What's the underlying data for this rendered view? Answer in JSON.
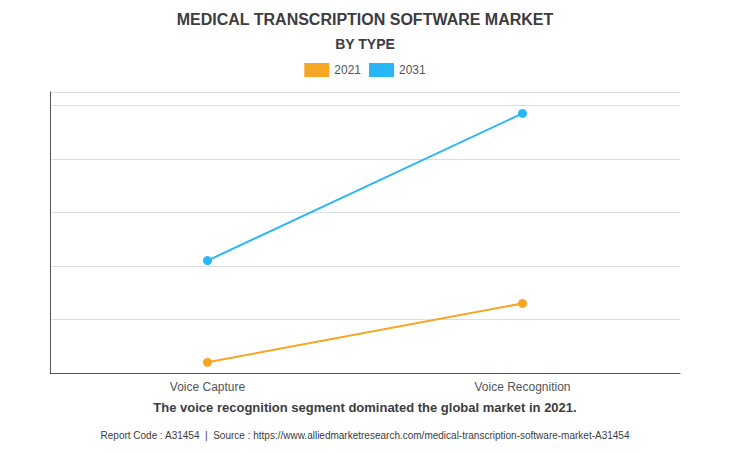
{
  "chart_data": {
    "type": "line",
    "title": "MEDICAL TRANSCRIPTION SOFTWARE MARKET",
    "subtitle": "BY TYPE",
    "categories": [
      "Voice Capture",
      "Voice Recognition"
    ],
    "series": [
      {
        "name": "2021",
        "color": "#F5A623",
        "values": [
          0.04,
          0.26
        ]
      },
      {
        "name": "2031",
        "color": "#29B6F6",
        "values": [
          0.42,
          0.97
        ]
      }
    ],
    "ylim": [
      0,
      1.05
    ],
    "yticks": [
      0,
      0.2,
      0.4,
      0.6,
      0.8,
      1
    ],
    "grid": true,
    "tick_labels": "x",
    "legend": "top",
    "marker": "circle",
    "annotations": [
      "The voice recognition segment dominated the global market in 2021.",
      "Report Code : A31454  |  Source : https://www.alliedmarketresearch.com/medical-transcription-software-market-A31454"
    ]
  }
}
